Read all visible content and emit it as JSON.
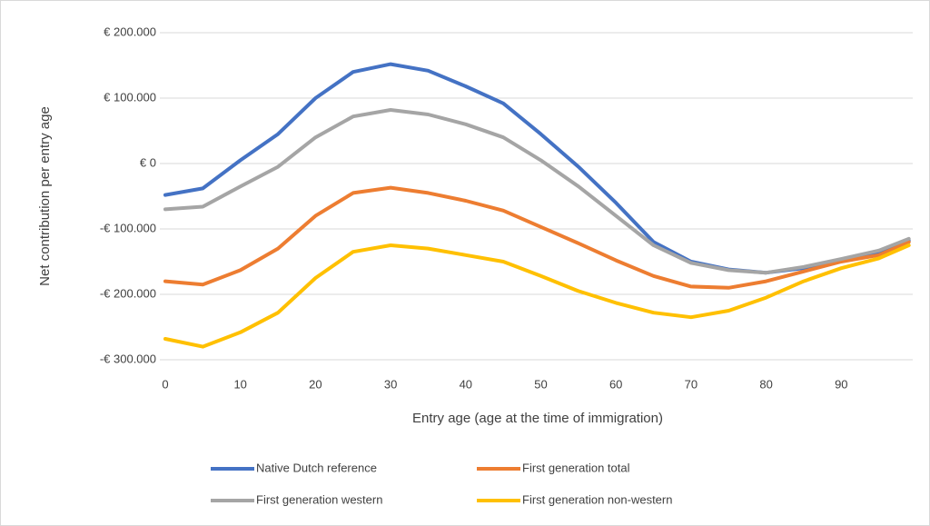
{
  "chart_data": {
    "type": "line",
    "x_label": "Entry age (age at the time of immigration)",
    "y_label": "Net contribution per entry age",
    "x": [
      0,
      5,
      10,
      15,
      20,
      25,
      30,
      35,
      40,
      45,
      50,
      55,
      60,
      65,
      70,
      75,
      80,
      85,
      90,
      95,
      99
    ],
    "series": [
      {
        "name": "Native Dutch reference",
        "color": "#4472c4",
        "values": [
          -48000,
          -38000,
          5000,
          45000,
          100000,
          140000,
          152000,
          142000,
          118000,
          92000,
          45000,
          -5000,
          -60000,
          -120000,
          -150000,
          -162000,
          -167000,
          -160000,
          -148000,
          -135000,
          -118000
        ]
      },
      {
        "name": "First generation total",
        "color": "#ed7d31",
        "values": [
          -180000,
          -185000,
          -163000,
          -130000,
          -80000,
          -45000,
          -37000,
          -45000,
          -57000,
          -72000,
          -97000,
          -122000,
          -148000,
          -172000,
          -188000,
          -190000,
          -180000,
          -165000,
          -150000,
          -140000,
          -120000
        ]
      },
      {
        "name": "First generation western",
        "color": "#a5a5a5",
        "values": [
          -70000,
          -66000,
          -35000,
          -5000,
          40000,
          72000,
          82000,
          75000,
          60000,
          40000,
          5000,
          -35000,
          -80000,
          -125000,
          -152000,
          -163000,
          -167000,
          -158000,
          -146000,
          -133000,
          -115000
        ]
      },
      {
        "name": "First generation non-western",
        "color": "#ffc000",
        "values": [
          -268000,
          -280000,
          -258000,
          -228000,
          -175000,
          -135000,
          -125000,
          -130000,
          -140000,
          -150000,
          -172000,
          -195000,
          -213000,
          -228000,
          -235000,
          -225000,
          -205000,
          -180000,
          -160000,
          -145000,
          -125000
        ]
      }
    ],
    "xlim": [
      0,
      100
    ],
    "xticks": [
      0,
      10,
      20,
      30,
      40,
      50,
      60,
      70,
      80,
      90
    ],
    "ylim": [
      -300000,
      200000
    ],
    "yticks": [
      {
        "value": -300000,
        "label": "-€ 300.000"
      },
      {
        "value": -200000,
        "label": "-€ 200.000"
      },
      {
        "value": -100000,
        "label": "-€ 100.000"
      },
      {
        "value": 0,
        "label": "€ 0"
      },
      {
        "value": 100000,
        "label": "€ 100.000"
      },
      {
        "value": 200000,
        "label": "€ 200.000"
      }
    ],
    "grid": true,
    "legend": "bottom"
  }
}
